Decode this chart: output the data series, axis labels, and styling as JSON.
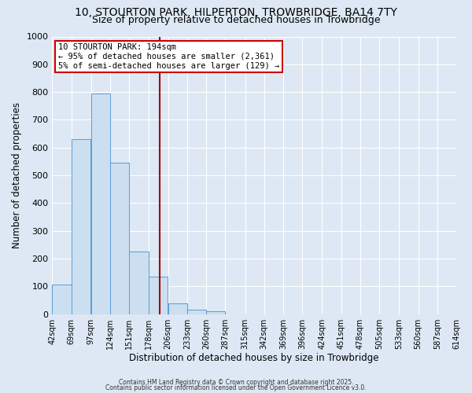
{
  "title": "10, STOURTON PARK, HILPERTON, TROWBRIDGE, BA14 7TY",
  "subtitle": "Size of property relative to detached houses in Trowbridge",
  "xlabel": "Distribution of detached houses by size in Trowbridge",
  "ylabel": "Number of detached properties",
  "bin_edges": [
    42,
    69,
    97,
    124,
    151,
    178,
    206,
    233,
    260,
    287,
    315,
    342,
    369,
    396,
    424,
    451,
    478,
    505,
    533,
    560,
    587
  ],
  "bar_heights": [
    107,
    630,
    795,
    545,
    225,
    135,
    40,
    15,
    10,
    0,
    0,
    0,
    0,
    0,
    0,
    0,
    0,
    0,
    0,
    0
  ],
  "bar_color": "#ccdff0",
  "bar_edge_color": "#5b9bd5",
  "vline_x": 194,
  "vline_color": "#a00000",
  "annotation_text": "10 STOURTON PARK: 194sqm\n← 95% of detached houses are smaller (2,361)\n5% of semi-detached houses are larger (129) →",
  "annotation_box_color": "#ffffff",
  "annotation_box_edge": "#cc0000",
  "ylim": [
    0,
    1000
  ],
  "yticks": [
    0,
    100,
    200,
    300,
    400,
    500,
    600,
    700,
    800,
    900,
    1000
  ],
  "background_color": "#dde8f4",
  "grid_color": "#ffffff",
  "footer_line1": "Contains HM Land Registry data © Crown copyright and database right 2025.",
  "footer_line2": "Contains public sector information licensed under the Open Government Licence v3.0.",
  "title_fontsize": 10,
  "subtitle_fontsize": 9,
  "annot_fontsize": 7.5,
  "tick_label_fontsize": 7,
  "ylabel_fontsize": 8.5,
  "xlabel_fontsize": 8.5,
  "footer_fontsize": 5.5
}
